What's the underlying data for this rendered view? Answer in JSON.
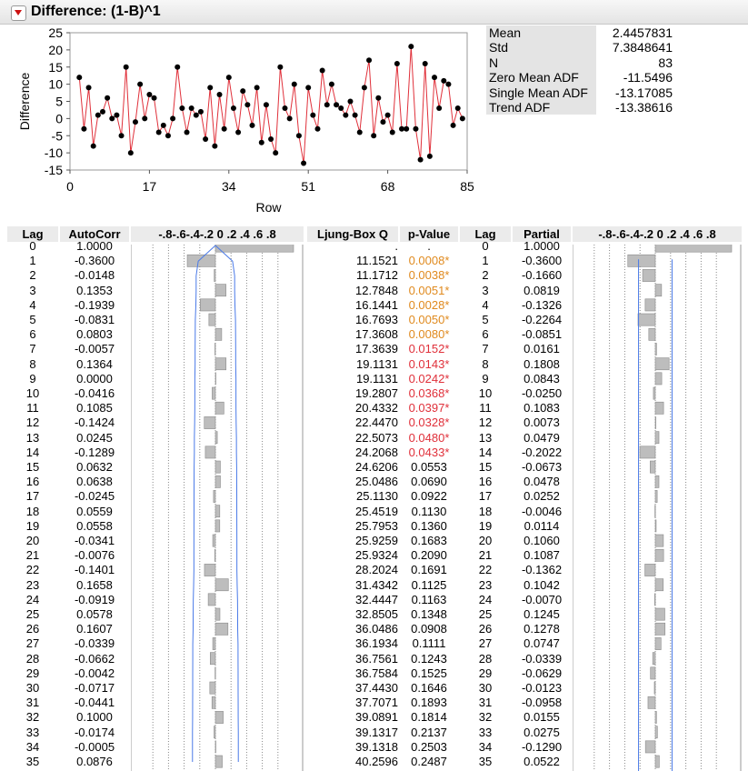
{
  "title": "Difference: (1-B)^1",
  "chart_data": {
    "type": "line",
    "ylabel": "Difference",
    "xlabel": "Row",
    "xlim": [
      0,
      85
    ],
    "ylim": [
      -15,
      25
    ],
    "x_ticks": [
      "0",
      "17",
      "34",
      "51",
      "68",
      "85"
    ],
    "y_ticks": [
      "25",
      "20",
      "15",
      "10",
      "5",
      "0",
      "-5",
      "-10",
      "-15"
    ],
    "x": [
      2,
      3,
      4,
      5,
      6,
      7,
      8,
      9,
      10,
      11,
      12,
      13,
      14,
      15,
      16,
      17,
      18,
      19,
      20,
      21,
      22,
      23,
      24,
      25,
      26,
      27,
      28,
      29,
      30,
      31,
      32,
      33,
      34,
      35,
      36,
      37,
      38,
      39,
      40,
      41,
      42,
      43,
      44,
      45,
      46,
      47,
      48,
      49,
      50,
      51,
      52,
      53,
      54,
      55,
      56,
      57,
      58,
      59,
      60,
      61,
      62,
      63,
      64,
      65,
      66,
      67,
      68,
      69,
      70,
      71,
      72,
      73,
      74,
      75,
      76,
      77,
      78,
      79,
      80,
      81,
      82,
      83,
      84
    ],
    "y": [
      12,
      -3,
      9,
      -8,
      1,
      2,
      6,
      0,
      1,
      -5,
      15,
      -10,
      -1,
      10,
      0,
      7,
      6,
      -4,
      -2,
      -5,
      0,
      15,
      3,
      -4,
      3,
      1,
      2,
      -6,
      9,
      -8,
      7,
      -3,
      12,
      3,
      -4,
      8,
      4,
      -2,
      9,
      -7,
      4,
      -6,
      -10,
      15,
      3,
      0,
      10,
      -5,
      -13,
      9,
      1,
      -3,
      14,
      4,
      10,
      4,
      3,
      1,
      5,
      1,
      -4,
      9,
      17,
      -5,
      6,
      -1,
      1,
      -4,
      16,
      -3,
      -3,
      21,
      -3,
      -12,
      16,
      -11,
      12,
      3,
      11,
      10,
      -2,
      3,
      0
    ],
    "line_color": "#e0303a",
    "marker_color": "#000000"
  },
  "stats": {
    "rows": [
      {
        "label": "Mean",
        "value": "2.4457831"
      },
      {
        "label": "Std",
        "value": "7.3848641"
      },
      {
        "label": "N",
        "value": "83"
      },
      {
        "label": "Zero Mean ADF",
        "value": "-11.5496"
      },
      {
        "label": "Single Mean ADF",
        "value": "-13.17085"
      },
      {
        "label": "Trend ADF",
        "value": "-13.38616"
      }
    ]
  },
  "acf_table": {
    "headers": {
      "lag": "Lag",
      "autocorr": "AutoCorr",
      "scale": "-.8-.6-.4-.2 0 .2 .4 .6 .8",
      "ljung": "Ljung-Box Q",
      "pvalue": "p-Value",
      "lag2": "Lag",
      "partial": "Partial",
      "scale2": "-.8-.6-.4-.2 0 .2 .4 .6 .8"
    },
    "lags": [
      "0",
      "1",
      "2",
      "3",
      "4",
      "5",
      "6",
      "7",
      "8",
      "9",
      "10",
      "11",
      "12",
      "13",
      "14",
      "15",
      "16",
      "17",
      "18",
      "19",
      "20",
      "21",
      "22",
      "23",
      "24",
      "25",
      "26",
      "27",
      "28",
      "29",
      "30",
      "31",
      "32",
      "33",
      "34",
      "35"
    ],
    "autocorr": [
      "1.0000",
      "-0.3600",
      "-0.0148",
      "0.1353",
      "-0.1939",
      "-0.0831",
      "0.0803",
      "-0.0057",
      "0.1364",
      "0.0000",
      "-0.0416",
      "0.1085",
      "-0.1424",
      "0.0245",
      "-0.1289",
      "0.0632",
      "0.0638",
      "-0.0245",
      "0.0559",
      "0.0558",
      "-0.0341",
      "-0.0076",
      "-0.1401",
      "0.1658",
      "-0.0919",
      "0.0578",
      "0.1607",
      "-0.0339",
      "-0.0662",
      "-0.0042",
      "-0.0717",
      "-0.0441",
      "0.1000",
      "-0.0174",
      "-0.0005",
      "0.0876"
    ],
    "ljung_q": [
      ".",
      "11.1521",
      "11.1712",
      "12.7848",
      "16.1441",
      "16.7693",
      "17.3608",
      "17.3639",
      "19.1131",
      "19.1131",
      "19.2807",
      "20.4332",
      "22.4470",
      "22.5073",
      "24.2068",
      "24.6206",
      "25.0486",
      "25.1130",
      "25.4519",
      "25.7953",
      "25.9259",
      "25.9324",
      "28.2024",
      "31.4342",
      "32.4447",
      "32.8505",
      "36.0486",
      "36.1934",
      "36.7561",
      "36.7584",
      "37.4430",
      "37.7071",
      "39.0891",
      "39.1317",
      "39.1318",
      "40.2596"
    ],
    "p_value": [
      ".",
      "0.0008*",
      "0.0038*",
      "0.0051*",
      "0.0028*",
      "0.0050*",
      "0.0080*",
      "0.0152*",
      "0.0143*",
      "0.0242*",
      "0.0368*",
      "0.0397*",
      "0.0328*",
      "0.0480*",
      "0.0433*",
      "0.0553",
      "0.0690",
      "0.0922",
      "0.1130",
      "0.1360",
      "0.1683",
      "0.2090",
      "0.1691",
      "0.1125",
      "0.1163",
      "0.1348",
      "0.0908",
      "0.1111",
      "0.1243",
      "0.1525",
      "0.1646",
      "0.1893",
      "0.1814",
      "0.2137",
      "0.2503",
      "0.2487"
    ],
    "partial": [
      "1.0000",
      "-0.3600",
      "-0.1660",
      "0.0819",
      "-0.1326",
      "-0.2264",
      "-0.0851",
      "0.0161",
      "0.1808",
      "0.0843",
      "-0.0250",
      "0.1083",
      "0.0073",
      "0.0479",
      "-0.2022",
      "-0.0673",
      "0.0478",
      "0.0252",
      "-0.0046",
      "0.0114",
      "0.1060",
      "0.1087",
      "-0.1362",
      "0.1042",
      "-0.0070",
      "0.1245",
      "0.1278",
      "0.0747",
      "-0.0339",
      "-0.0629",
      "-0.0123",
      "-0.0958",
      "0.0155",
      "0.0275",
      "-0.1290",
      "0.0522"
    ],
    "sig_orange_color": "#e08a1e",
    "sig_red_color": "#e0303a",
    "bar_color": "#bdbdbd",
    "band_color": "#4a7ae8"
  }
}
